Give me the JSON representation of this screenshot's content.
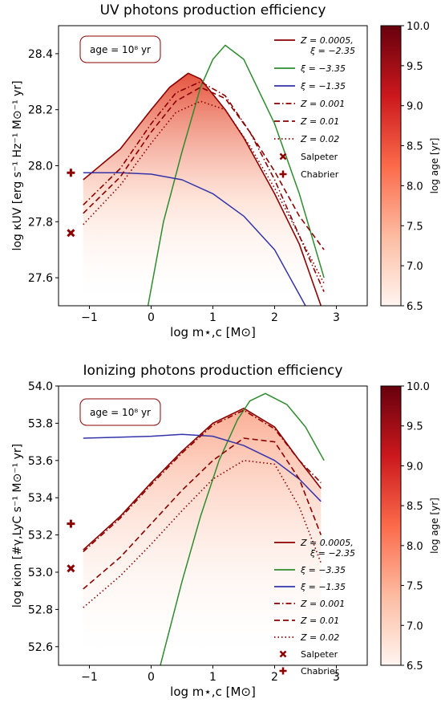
{
  "chart_data": [
    {
      "type": "line",
      "title": "UV photons production efficiency",
      "xlabel": "log m⋆,c [M⊙]",
      "ylabel": "log κUV [erg s⁻¹ Hz⁻¹ M⊙⁻¹ yr]",
      "xlim": [
        -1.5,
        3.5
      ],
      "ylim": [
        27.5,
        28.5
      ],
      "xticks": [
        "−1",
        "0",
        "1",
        "2",
        "3"
      ],
      "yticks": [
        "27.6",
        "27.8",
        "28.0",
        "28.2",
        "28.4"
      ],
      "annotation": "age = 10⁸ yr",
      "legend_placement": "upper right",
      "grid": false,
      "series": [
        {
          "name": "Z = 0.0005, ξ = −2.35",
          "color": "#8b0000",
          "style": "solid",
          "x": [
            -1.1,
            -0.5,
            0.0,
            0.3,
            0.6,
            0.8,
            1.2,
            1.5,
            2.0,
            2.4,
            2.75
          ],
          "y": [
            27.95,
            28.06,
            28.2,
            28.28,
            28.33,
            28.31,
            28.2,
            28.1,
            27.9,
            27.72,
            27.5
          ]
        },
        {
          "name": "ξ = −3.35",
          "color": "#2e8b2e",
          "style": "solid",
          "x": [
            -0.05,
            0.2,
            0.5,
            0.8,
            1.0,
            1.2,
            1.5,
            2.0,
            2.4,
            2.8
          ],
          "y": [
            27.5,
            27.8,
            28.05,
            28.28,
            28.38,
            28.43,
            28.38,
            28.15,
            27.9,
            27.6
          ]
        },
        {
          "name": "ξ = −1.35",
          "color": "#3333aa",
          "style": "solid",
          "x": [
            -1.1,
            -0.5,
            0.0,
            0.5,
            1.0,
            1.5,
            2.0,
            2.5
          ],
          "y": [
            27.975,
            27.975,
            27.97,
            27.95,
            27.9,
            27.82,
            27.7,
            27.5
          ]
        },
        {
          "name": "Z = 0.001",
          "color": "#8b0000",
          "style": "dashdot",
          "x": [
            -1.1,
            -0.5,
            0.0,
            0.4,
            0.8,
            1.2,
            1.6,
            2.0,
            2.4,
            2.8
          ],
          "y": [
            27.86,
            27.99,
            28.15,
            28.26,
            28.3,
            28.25,
            28.12,
            27.95,
            27.75,
            27.55
          ]
        },
        {
          "name": "Z = 0.01",
          "color": "#8b0000",
          "style": "dashed",
          "x": [
            -1.1,
            -0.5,
            0.0,
            0.4,
            0.8,
            1.2,
            1.6,
            2.0,
            2.4,
            2.8
          ],
          "y": [
            27.83,
            27.96,
            28.12,
            28.23,
            28.28,
            28.24,
            28.12,
            27.98,
            27.82,
            27.7
          ]
        },
        {
          "name": "Z = 0.02",
          "color": "#8b0000",
          "style": "dotted",
          "x": [
            -1.1,
            -0.5,
            0.0,
            0.4,
            0.8,
            1.2,
            1.6,
            2.0,
            2.4,
            2.8
          ],
          "y": [
            27.79,
            27.93,
            28.08,
            28.19,
            28.23,
            28.2,
            28.07,
            27.92,
            27.75,
            27.58
          ]
        },
        {
          "name": "Salpeter",
          "color": "#8b0000",
          "marker": "x",
          "x": [
            -1.3
          ],
          "y": [
            27.76
          ]
        },
        {
          "name": "Chabrier",
          "color": "#8b0000",
          "marker": "plus",
          "x": [
            -1.3
          ],
          "y": [
            27.975
          ]
        }
      ],
      "colorbar": {
        "label": "log age [yr]",
        "min": 6.5,
        "max": 10.0,
        "ticks": [
          "6.5",
          "7.0",
          "7.5",
          "8.0",
          "8.5",
          "9.0",
          "9.5",
          "10.0"
        ]
      }
    },
    {
      "type": "line",
      "title": "Ionizing photons production efficiency",
      "xlabel": "log m⋆,c [M⊙]",
      "ylabel": "log κion [#γ,LyC s⁻¹ M⊙⁻¹ yr]",
      "xlim": [
        -1.5,
        3.5
      ],
      "ylim": [
        52.5,
        54.0
      ],
      "xticks": [
        "−1",
        "0",
        "1",
        "2",
        "3"
      ],
      "yticks": [
        "52.6",
        "52.8",
        "53.0",
        "53.2",
        "53.4",
        "53.6",
        "53.8",
        "54.0"
      ],
      "annotation": "age = 10⁸ yr",
      "legend_placement": "lower right",
      "grid": false,
      "series": [
        {
          "name": "Z = 0.0005, ξ = −2.35",
          "color": "#8b0000",
          "style": "solid",
          "x": [
            -1.1,
            -0.5,
            0.0,
            0.5,
            1.0,
            1.5,
            2.0,
            2.4,
            2.75
          ],
          "y": [
            53.12,
            53.3,
            53.48,
            53.65,
            53.8,
            53.88,
            53.78,
            53.6,
            53.45
          ]
        },
        {
          "name": "ξ = −3.35",
          "color": "#2e8b2e",
          "style": "solid",
          "x": [
            0.15,
            0.5,
            0.8,
            1.1,
            1.4,
            1.6,
            1.85,
            2.2,
            2.5,
            2.8
          ],
          "y": [
            52.5,
            52.95,
            53.3,
            53.6,
            53.82,
            53.92,
            53.96,
            53.9,
            53.78,
            53.6
          ]
        },
        {
          "name": "ξ = −1.35",
          "color": "#3333aa",
          "style": "solid",
          "x": [
            -1.1,
            -0.5,
            0.0,
            0.5,
            1.0,
            1.5,
            2.0,
            2.4,
            2.75
          ],
          "y": [
            53.72,
            53.725,
            53.73,
            53.74,
            53.73,
            53.68,
            53.6,
            53.5,
            53.38
          ]
        },
        {
          "name": "Z = 0.001",
          "color": "#8b0000",
          "style": "dashdot",
          "x": [
            -1.1,
            -0.5,
            0.0,
            0.5,
            1.0,
            1.5,
            2.0,
            2.4,
            2.75
          ],
          "y": [
            53.11,
            53.29,
            53.47,
            53.64,
            53.79,
            53.87,
            53.77,
            53.6,
            53.48
          ]
        },
        {
          "name": "Z = 0.01",
          "color": "#8b0000",
          "style": "dashed",
          "x": [
            -1.1,
            -0.5,
            0.0,
            0.5,
            1.0,
            1.5,
            2.0,
            2.4,
            2.75
          ],
          "y": [
            52.91,
            53.08,
            53.26,
            53.44,
            53.6,
            53.72,
            53.7,
            53.5,
            53.2
          ]
        },
        {
          "name": "Z = 0.02",
          "color": "#8b0000",
          "style": "dotted",
          "x": [
            -1.1,
            -0.5,
            0.0,
            0.5,
            1.0,
            1.5,
            2.0,
            2.4,
            2.75
          ],
          "y": [
            52.81,
            52.98,
            53.15,
            53.33,
            53.5,
            53.6,
            53.58,
            53.35,
            53.05
          ]
        },
        {
          "name": "Salpeter",
          "color": "#8b0000",
          "marker": "x",
          "x": [
            -1.3
          ],
          "y": [
            53.02
          ]
        },
        {
          "name": "Chabrier",
          "color": "#8b0000",
          "marker": "plus",
          "x": [
            -1.3
          ],
          "y": [
            53.26
          ]
        }
      ],
      "colorbar": {
        "label": "log age [yr]",
        "min": 6.5,
        "max": 10.0,
        "ticks": [
          "6.5",
          "7.0",
          "7.5",
          "8.0",
          "8.5",
          "9.0",
          "9.5",
          "10.0"
        ]
      }
    }
  ]
}
